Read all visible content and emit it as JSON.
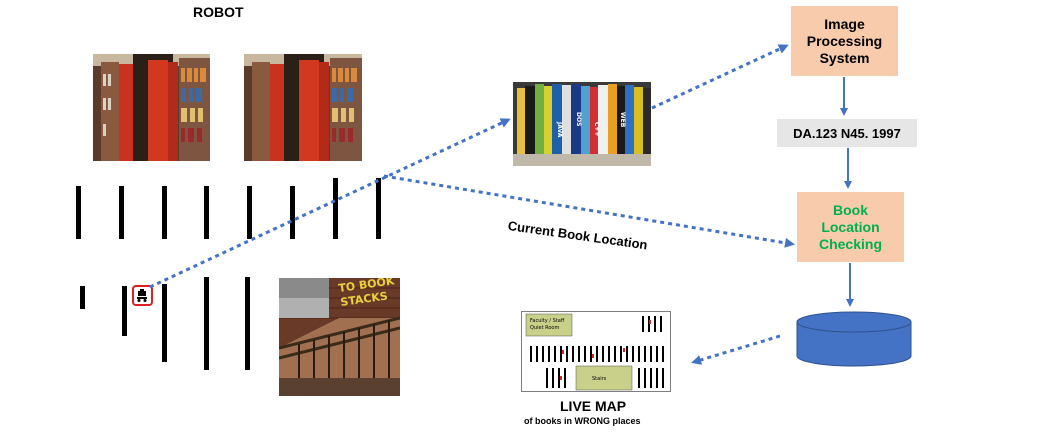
{
  "robot_label": "ROBOT",
  "image_processing_label": "Image Processing System",
  "call_number": "DA.123 N45. 1997",
  "book_location_label": "Book Location Checking",
  "current_location_label": "Current Book Location",
  "live_map_title": "LIVE MAP",
  "live_map_subtitle": "of books in WRONG places",
  "map_labels": {
    "faculty": "Faculty / Staff Quiet Room",
    "stairs": "Stairs"
  },
  "sign_text": "TO BOOK STACKS",
  "book_spines": [
    "JAVA",
    "DOS",
    "C++",
    "Jaguar",
    "WEB",
    "SQL",
    "LINUX",
    "NET"
  ],
  "colors": {
    "box_fill": "#f8cbad",
    "arrow": "#4472c4",
    "database": "#4472c4",
    "green_text": "#00b050",
    "label_bg": "#e7e6e6",
    "shelf_red": "#c8321e",
    "robot_marker": "#e02020"
  },
  "icons": {
    "robot": "robot-icon",
    "database": "database-icon"
  }
}
